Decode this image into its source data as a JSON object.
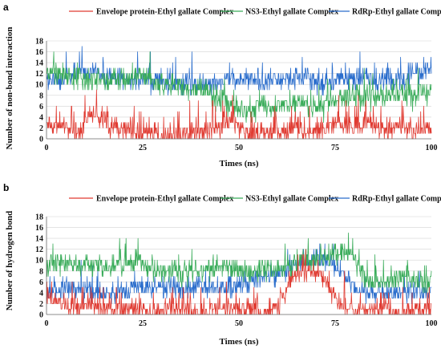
{
  "chart_data": [
    {
      "type": "line",
      "panel_label": "a",
      "xlabel": "Times (ns)",
      "ylabel": "Number of non-bond interaction",
      "xlim": [
        0,
        100
      ],
      "ylim": [
        0,
        18
      ],
      "x_ticks": [
        0,
        25,
        50,
        75,
        100
      ],
      "y_ticks": [
        0,
        2,
        4,
        6,
        8,
        10,
        12,
        14,
        16,
        18
      ],
      "grid": "horizontal",
      "legend_position": "top",
      "series": [
        {
          "name": "Envelope protein-Ethyl gallate Complex",
          "color": "#e03b32",
          "x": [
            0,
            4,
            8,
            12,
            16,
            20,
            24,
            28,
            32,
            36,
            40,
            44,
            48,
            52,
            56,
            60,
            64,
            68,
            72,
            76,
            80,
            84,
            88,
            92,
            96,
            100
          ],
          "values": [
            3,
            2,
            1,
            5,
            2,
            2,
            1,
            1,
            0,
            1,
            1,
            2,
            3,
            1,
            1,
            1,
            2,
            1,
            2,
            3,
            2,
            3,
            1,
            2,
            1,
            2
          ],
          "noise": 1.3,
          "spike_prob": 0.12,
          "spike_amp": 3.5
        },
        {
          "name": "NS3-Ethyl gallate Complex",
          "color": "#3aac5a",
          "x": [
            0,
            4,
            8,
            12,
            16,
            20,
            24,
            28,
            32,
            36,
            40,
            44,
            48,
            52,
            56,
            60,
            64,
            68,
            72,
            76,
            80,
            84,
            88,
            92,
            96,
            100
          ],
          "values": [
            12,
            12,
            11,
            11,
            11,
            11,
            12,
            10,
            10,
            9,
            9,
            8,
            6,
            5,
            6,
            6,
            7,
            6,
            6,
            7,
            8,
            8,
            8,
            8,
            8,
            9
          ],
          "noise": 1.5,
          "spike_prob": 0.05,
          "spike_amp": 3
        },
        {
          "name": "RdRp-Ethyl gallate Complex",
          "color": "#2a6dcc",
          "x": [
            0,
            4,
            8,
            12,
            16,
            20,
            24,
            28,
            32,
            36,
            40,
            44,
            48,
            52,
            56,
            60,
            64,
            68,
            72,
            76,
            80,
            84,
            88,
            92,
            96,
            100
          ],
          "values": [
            11,
            11,
            12,
            12,
            11,
            11,
            11,
            11,
            10,
            10,
            10,
            10,
            11,
            11,
            10,
            11,
            11,
            11,
            10,
            11,
            11,
            11,
            11,
            11,
            12,
            13
          ],
          "noise": 1.4,
          "spike_prob": 0.05,
          "spike_amp": 3
        }
      ]
    },
    {
      "type": "line",
      "panel_label": "b",
      "xlabel": "Times (ns)",
      "ylabel": "Number of hydrogen bond",
      "xlim": [
        0,
        100
      ],
      "ylim": [
        0,
        18
      ],
      "x_ticks": [
        0,
        25,
        50,
        75,
        100
      ],
      "y_ticks": [
        0,
        2,
        4,
        6,
        8,
        10,
        12,
        14,
        16,
        18
      ],
      "grid": "horizontal",
      "legend_position": "top",
      "series": [
        {
          "name": "Envelope protein-Ethyl gallate Complex",
          "color": "#e03b32",
          "x": [
            0,
            4,
            8,
            12,
            16,
            20,
            24,
            28,
            32,
            36,
            40,
            44,
            48,
            52,
            56,
            60,
            64,
            68,
            72,
            76,
            80,
            84,
            88,
            92,
            96,
            100
          ],
          "values": [
            3,
            2,
            1,
            2,
            1,
            1,
            1,
            0,
            1,
            1,
            0,
            1,
            1,
            1,
            0,
            1,
            7,
            8,
            7,
            2,
            1,
            1,
            1,
            0,
            1,
            1
          ],
          "noise": 1.2,
          "spike_prob": 0.1,
          "spike_amp": 3
        },
        {
          "name": "NS3-Ethyl gallate Complex",
          "color": "#3aac5a",
          "x": [
            0,
            4,
            8,
            12,
            16,
            20,
            24,
            28,
            32,
            36,
            40,
            44,
            48,
            52,
            56,
            60,
            64,
            68,
            72,
            76,
            80,
            84,
            88,
            92,
            96,
            100
          ],
          "values": [
            9,
            10,
            9,
            9,
            9,
            9,
            10,
            8,
            8,
            8,
            8,
            9,
            8,
            8,
            8,
            8,
            9,
            10,
            10,
            12,
            10,
            6,
            6,
            7,
            6,
            6
          ],
          "noise": 1.4,
          "spike_prob": 0.05,
          "spike_amp": 3
        },
        {
          "name": "RdRp-Ethyl gallate Complex",
          "color": "#2a6dcc",
          "x": [
            0,
            4,
            8,
            12,
            16,
            20,
            24,
            28,
            32,
            36,
            40,
            44,
            48,
            52,
            56,
            60,
            64,
            68,
            72,
            76,
            80,
            84,
            88,
            92,
            96,
            100
          ],
          "values": [
            4,
            5,
            5,
            4,
            4,
            4,
            5,
            5,
            5,
            5,
            5,
            5,
            5,
            6,
            7,
            7,
            9,
            10,
            10,
            8,
            5,
            4,
            4,
            4,
            4,
            4
          ],
          "noise": 1.3,
          "spike_prob": 0.05,
          "spike_amp": 3
        }
      ]
    }
  ]
}
